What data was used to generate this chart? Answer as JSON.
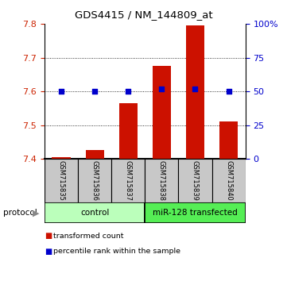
{
  "title": "GDS4415 / NM_144809_at",
  "samples": [
    "GSM715835",
    "GSM715836",
    "GSM715837",
    "GSM715838",
    "GSM715839",
    "GSM715840"
  ],
  "transformed_counts": [
    7.405,
    7.425,
    7.565,
    7.675,
    7.795,
    7.51
  ],
  "percentile_ranks": [
    50,
    50,
    50,
    52,
    52,
    50
  ],
  "ylim_left": [
    7.4,
    7.8
  ],
  "ylim_right": [
    0,
    100
  ],
  "yticks_left": [
    7.4,
    7.5,
    7.6,
    7.7,
    7.8
  ],
  "yticks_right": [
    0,
    25,
    50,
    75,
    100
  ],
  "bar_color": "#cc1100",
  "dot_color": "#0000cc",
  "bar_baseline": 7.4,
  "control_color": "#bbffbb",
  "mir_color": "#55ee55",
  "protocol_label": "protocol",
  "legend_items": [
    {
      "label": "transformed count",
      "color": "#cc1100"
    },
    {
      "label": "percentile rank within the sample",
      "color": "#0000cc"
    }
  ],
  "background_color": "#ffffff",
  "sample_box_color": "#c8c8c8",
  "left_tick_color": "#cc2200",
  "right_tick_color": "#0000cc",
  "grid_yticks": [
    7.5,
    7.6,
    7.7
  ]
}
